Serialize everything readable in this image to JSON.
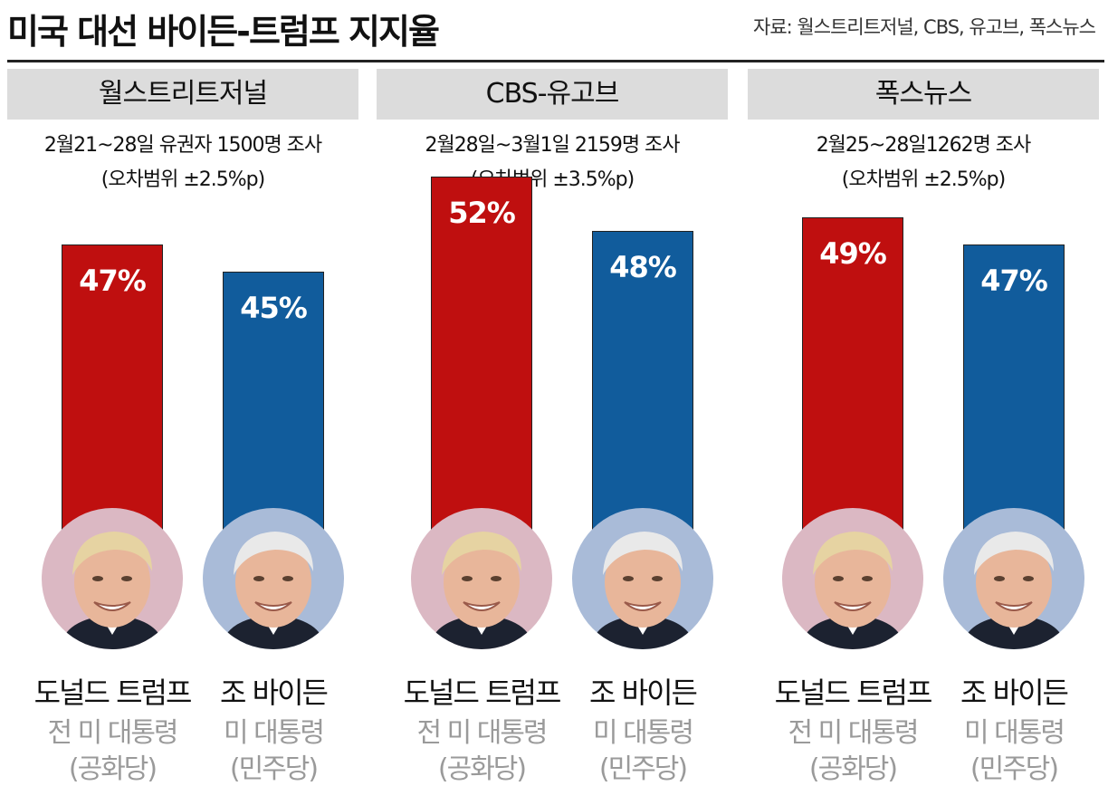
{
  "header": {
    "title": "미국 대선 바이든-트럼프 지지율",
    "source": "자료: 월스트리트저널, CBS, 유고브, 폭스뉴스"
  },
  "colors": {
    "trump": "#bf0f0f",
    "biden": "#115c9c",
    "trump_circle": "#dbb8c3",
    "biden_circle": "#a9bbd8",
    "panel_header": "#dcdcdc"
  },
  "chart_data": [
    {
      "type": "bar",
      "title": "월스트리트저널",
      "note": [
        "2월21~28일 유권자 1500명 조사",
        "(오차범위 ±2.5%p)"
      ],
      "categories": [
        "도널드 트럼프",
        "조 바이든"
      ],
      "values": [
        47,
        45
      ],
      "labels": [
        "47%",
        "45%"
      ]
    },
    {
      "type": "bar",
      "title": "CBS-유고브",
      "note": [
        "2월28일~3월1일 2159명 조사",
        "(오차범위 ±3.5%p)"
      ],
      "categories": [
        "도널드 트럼프",
        "조 바이든"
      ],
      "values": [
        52,
        48
      ],
      "labels": [
        "52%",
        "48%"
      ]
    },
    {
      "type": "bar",
      "title": "폭스뉴스",
      "note": [
        "2월25~28일1262명 조사",
        "(오차범위 ±2.5%p)"
      ],
      "categories": [
        "도널드 트럼프",
        "조 바이든"
      ],
      "values": [
        49,
        47
      ],
      "labels": [
        "49%",
        "47%"
      ]
    }
  ],
  "candidates": [
    {
      "name": "도널드 트럼프",
      "role": "전 미 대통령",
      "party": "(공화당)",
      "party_key": "trump"
    },
    {
      "name": "조 바이든",
      "role": "미 대통령",
      "party": "(민주당)",
      "party_key": "biden"
    }
  ]
}
